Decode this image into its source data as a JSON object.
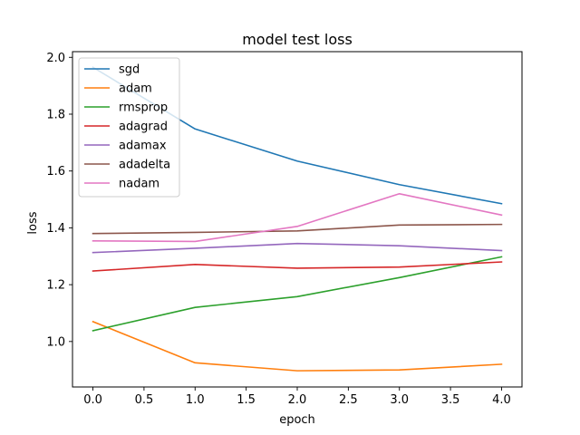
{
  "chart_data": {
    "type": "line",
    "title": "model test loss",
    "xlabel": "epoch",
    "ylabel": "loss",
    "x": [
      0,
      1,
      2,
      3,
      4
    ],
    "xlim": [
      -0.2,
      4.2
    ],
    "ylim": [
      0.84,
      2.02
    ],
    "xticks": [
      0.0,
      0.5,
      1.0,
      1.5,
      2.0,
      2.5,
      3.0,
      3.5,
      4.0
    ],
    "xtick_labels": [
      "0.0",
      "0.5",
      "1.0",
      "1.5",
      "2.0",
      "2.5",
      "3.0",
      "3.5",
      "4.0"
    ],
    "yticks": [
      1.0,
      1.2,
      1.4,
      1.6,
      1.8,
      2.0
    ],
    "ytick_labels": [
      "1.0",
      "1.2",
      "1.4",
      "1.6",
      "1.8",
      "2.0"
    ],
    "grid": false,
    "legend_position": "top-left",
    "series": [
      {
        "name": "sgd",
        "color": "#1f77b4",
        "values": [
          1.965,
          1.748,
          1.635,
          1.552,
          1.485
        ]
      },
      {
        "name": "adam",
        "color": "#ff7f0e",
        "values": [
          1.07,
          0.925,
          0.897,
          0.9,
          0.92
        ]
      },
      {
        "name": "rmsprop",
        "color": "#2ca02c",
        "values": [
          1.038,
          1.12,
          1.158,
          1.225,
          1.298
        ]
      },
      {
        "name": "adagrad",
        "color": "#d62728",
        "values": [
          1.248,
          1.271,
          1.258,
          1.262,
          1.28
        ]
      },
      {
        "name": "adamax",
        "color": "#9467bd",
        "values": [
          1.313,
          1.328,
          1.345,
          1.337,
          1.32
        ]
      },
      {
        "name": "adadelta",
        "color": "#8c564b",
        "values": [
          1.38,
          1.384,
          1.389,
          1.41,
          1.412
        ]
      },
      {
        "name": "nadam",
        "color": "#e377c2",
        "values": [
          1.354,
          1.352,
          1.405,
          1.52,
          1.445
        ]
      }
    ]
  }
}
